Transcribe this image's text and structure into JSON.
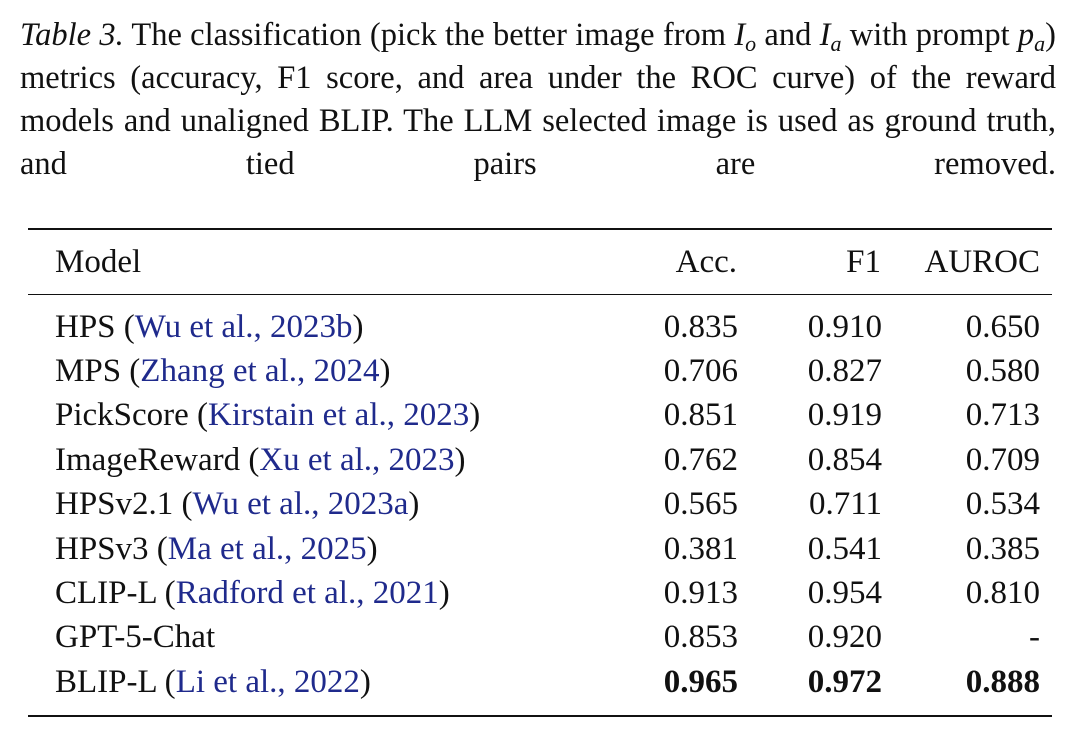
{
  "caption": {
    "label": "Table 3.",
    "parts": [
      {
        "text": "The classification (pick the better image from "
      },
      {
        "math": "I",
        "sub": "o"
      },
      {
        "text": " and "
      },
      {
        "math": "I",
        "sub": "a"
      },
      {
        "text": " with prompt "
      },
      {
        "math": "p",
        "sub": "a"
      },
      {
        "text": ") metrics (accuracy, F1 score, and area under the ROC curve) of the reward models and unaligned BLIP. The LLM selected image is used as ground truth, and tied pairs are removed."
      }
    ]
  },
  "table": {
    "header": [
      "Model",
      "Acc.",
      "F1",
      "AUROC"
    ],
    "rows": [
      {
        "model": [
          "HPS (",
          "Wu et al., 2023b",
          ")"
        ],
        "cells": [
          "0.835",
          "0.910",
          "0.650"
        ]
      },
      {
        "model": [
          "MPS (",
          "Zhang et al., 2024",
          ")"
        ],
        "cells": [
          "0.706",
          "0.827",
          "0.580"
        ]
      },
      {
        "model": [
          "PickScore (",
          "Kirstain et al., 2023",
          ")"
        ],
        "cells": [
          "0.851",
          "0.919",
          "0.713"
        ]
      },
      {
        "model": [
          "ImageReward (",
          "Xu et al., 2023",
          ")"
        ],
        "cells": [
          "0.762",
          "0.854",
          "0.709"
        ]
      },
      {
        "model": [
          "HPSv2.1 (",
          "Wu et al., 2023a",
          ")"
        ],
        "cells": [
          "0.565",
          "0.711",
          "0.534"
        ]
      },
      {
        "model": [
          "HPSv3 (",
          "Ma et al., 2025",
          ")"
        ],
        "cells": [
          "0.381",
          "0.541",
          "0.385"
        ]
      },
      {
        "model": [
          "CLIP-L (",
          "Radford et al., 2021",
          ")"
        ],
        "cells": [
          "0.913",
          "0.954",
          "0.810"
        ]
      },
      {
        "model": [
          "GPT-5-Chat"
        ],
        "cells": [
          "0.853",
          "0.920",
          "-"
        ]
      },
      {
        "model": [
          "BLIP-L (",
          "Li et al., 2022",
          ")"
        ],
        "cells": [
          "0.965",
          "0.972",
          "0.888"
        ],
        "bold": true
      }
    ]
  }
}
